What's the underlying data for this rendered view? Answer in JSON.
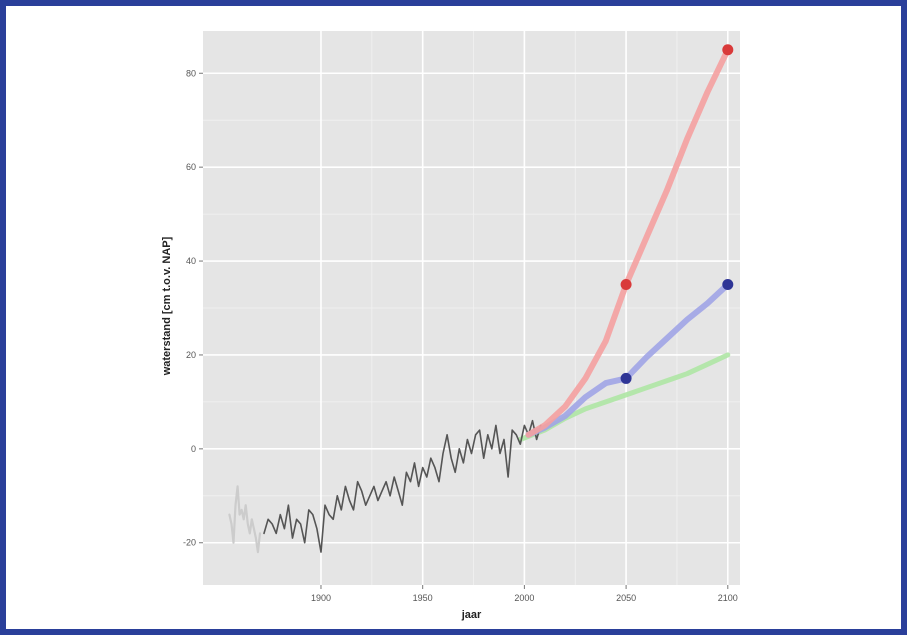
{
  "chart_data": {
    "type": "line",
    "title": "",
    "xlabel": "jaar",
    "ylabel": "waterstand [cm t.o.v. NAP]",
    "xlim": [
      1842,
      2106
    ],
    "ylim": [
      -29,
      89
    ],
    "grid": true,
    "x_ticks": [
      1900,
      1950,
      2000,
      2050,
      2100
    ],
    "x_tick_labels": [
      "1900",
      "1950",
      "2000",
      "2050",
      "2100"
    ],
    "y_ticks": [
      -20,
      0,
      20,
      40,
      60,
      80
    ],
    "y_tick_labels": [
      "-20",
      "0",
      "20",
      "40",
      "60",
      "80"
    ],
    "colors": {
      "panel": "#e5e5e5",
      "grid": "#ffffff",
      "observed": "#555555",
      "early_observed": "#cccccc",
      "high": "#f4a0a0",
      "mid": "#a0a4e6",
      "low": "#aee6a4",
      "high_point": "#d93a3a",
      "mid_point": "#2f3596"
    },
    "series": [
      {
        "name": "",
        "style": "early",
        "x": [
          1855,
          1856,
          1857,
          1858,
          1859,
          1860,
          1861,
          1862,
          1863,
          1864,
          1865,
          1866,
          1867,
          1868,
          1869,
          1870
        ],
        "y": [
          -14,
          -16,
          -20,
          -12,
          -8,
          -14,
          -13,
          -15,
          -12,
          -16,
          -18,
          -15,
          -17,
          -19,
          -22,
          -18
        ]
      },
      {
        "name": "",
        "style": "observed",
        "x": [
          1872,
          1874,
          1876,
          1878,
          1880,
          1882,
          1884,
          1886,
          1888,
          1890,
          1892,
          1894,
          1896,
          1898,
          1900,
          1902,
          1904,
          1906,
          1908,
          1910,
          1912,
          1914,
          1916,
          1918,
          1920,
          1922,
          1924,
          1926,
          1928,
          1930,
          1932,
          1934,
          1936,
          1938,
          1940,
          1942,
          1944,
          1946,
          1948,
          1950,
          1952,
          1954,
          1956,
          1958,
          1960,
          1962,
          1964,
          1966,
          1968,
          1970,
          1972,
          1974,
          1976,
          1978,
          1980,
          1982,
          1984,
          1986,
          1988,
          1990,
          1992,
          1994,
          1996,
          1998,
          2000,
          2002,
          2004,
          2006,
          2008
        ],
        "y": [
          -18,
          -15,
          -16,
          -18,
          -14,
          -17,
          -12,
          -19,
          -15,
          -16,
          -20,
          -13,
          -14,
          -17,
          -22,
          -12,
          -14,
          -15,
          -10,
          -13,
          -8,
          -11,
          -13,
          -7,
          -9,
          -12,
          -10,
          -8,
          -11,
          -9,
          -7,
          -10,
          -6,
          -9,
          -12,
          -5,
          -7,
          -3,
          -8,
          -4,
          -6,
          -2,
          -4,
          -7,
          -1,
          3,
          -2,
          -5,
          0,
          -3,
          2,
          -1,
          3,
          4,
          -2,
          3,
          0,
          5,
          -1,
          2,
          -6,
          4,
          3,
          1,
          5,
          3,
          6,
          2,
          5
        ]
      },
      {
        "name": "",
        "style": "high",
        "x": [
          2002,
          2010,
          2020,
          2030,
          2040,
          2050,
          2060,
          2070,
          2080,
          2090,
          2100
        ],
        "y": [
          3,
          5,
          9,
          15,
          23,
          35,
          45,
          55,
          66,
          76,
          85
        ]
      },
      {
        "name": "",
        "style": "mid",
        "x": [
          2002,
          2010,
          2020,
          2030,
          2040,
          2050,
          2060,
          2070,
          2080,
          2090,
          2100
        ],
        "y": [
          3,
          4.5,
          7,
          11,
          14,
          15,
          19.5,
          23.5,
          27.5,
          31,
          35
        ]
      },
      {
        "name": "",
        "style": "low",
        "x": [
          1998,
          2010,
          2020,
          2030,
          2040,
          2050,
          2060,
          2070,
          2080,
          2090,
          2100
        ],
        "y": [
          2,
          4,
          6.5,
          8.5,
          10,
          11.5,
          13,
          14.5,
          16,
          18,
          20
        ]
      }
    ],
    "points": [
      {
        "x": 2050,
        "y": 35,
        "style": "high_point"
      },
      {
        "x": 2100,
        "y": 85,
        "style": "high_point"
      },
      {
        "x": 2050,
        "y": 15,
        "style": "mid_point"
      },
      {
        "x": 2100,
        "y": 35,
        "style": "mid_point"
      }
    ]
  }
}
